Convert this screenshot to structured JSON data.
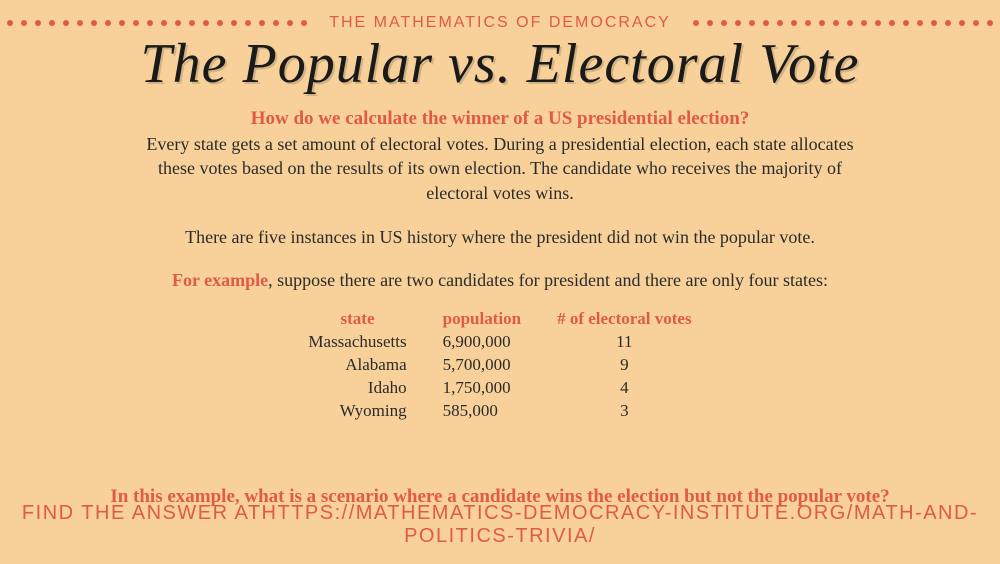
{
  "colors": {
    "background": "#f7d199",
    "accent": "#e05a47",
    "text": "#2a2a2a",
    "title": "#1a1a1a"
  },
  "kicker": "THE MATHEMATICS OF DEMOCRACY",
  "title": "The Popular vs. Electoral Vote",
  "question": "How do we calculate the winner of a US presidential election?",
  "explanation": "Every state gets a set amount of electoral votes. During a presidential election, each state allocates these votes based on the results of its own election. The candidate who receives the majority of electoral votes wins.",
  "fact": "There are five instances in US history where the president did not win the popular vote.",
  "example_lead": "For example",
  "example_rest": ", suppose there are two candidates for president and there are only four states:",
  "table": {
    "headers": {
      "state": "state",
      "population": "population",
      "ev": "# of electoral votes"
    },
    "rows": [
      {
        "state": "Massachusetts",
        "population": "6,900,000",
        "ev": "11"
      },
      {
        "state": "Alabama",
        "population": "5,700,000",
        "ev": "9"
      },
      {
        "state": "Idaho",
        "population": "1,750,000",
        "ev": "4"
      },
      {
        "state": "Wyoming",
        "population": "585,000",
        "ev": "3"
      }
    ]
  },
  "bottom_question": "In this example, what is a scenario where a candidate wins the election but not the popular vote?",
  "footer_prefix": "FIND THE ANSWER AT",
  "footer_url": "HTTPS://MATHEMATICS-DEMOCRACY-INSTITUTE.ORG/MATH-AND-POLITICS-TRIVIA/",
  "dots_per_side": 24
}
